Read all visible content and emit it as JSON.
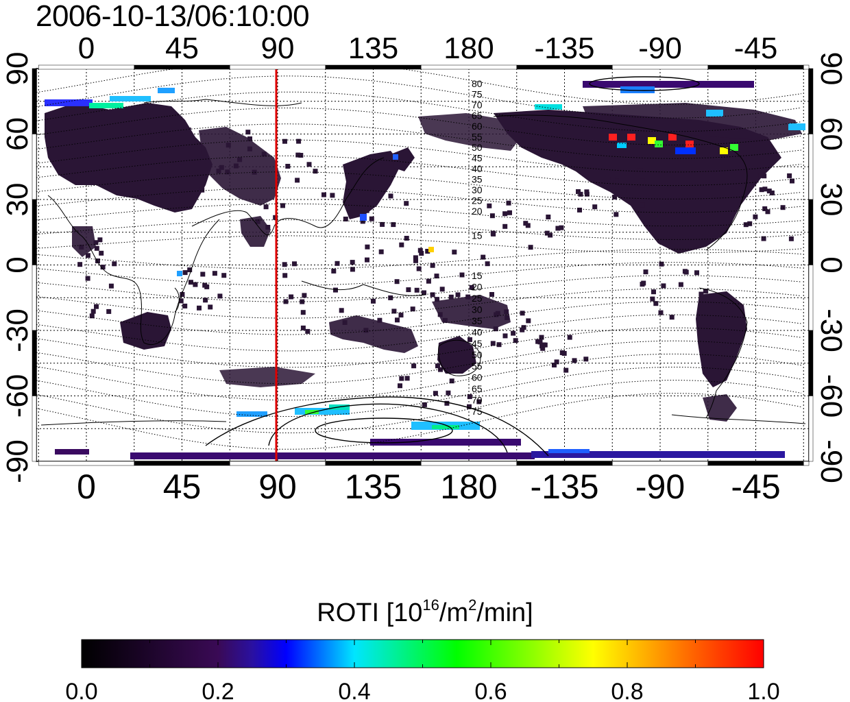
{
  "title": "2006-10-13/06:10:00",
  "map": {
    "lon_ticks_top": [
      "0",
      "45",
      "90",
      "135",
      "180",
      "-135",
      "-90",
      "-45"
    ],
    "lon_ticks_bottom": [
      "0",
      "45",
      "90",
      "135",
      "180",
      "-135",
      "-90",
      "-45"
    ],
    "lat_ticks_left": [
      "90",
      "60",
      "30",
      "0",
      "-30",
      "-60",
      "-90"
    ],
    "lat_ticks_right": [
      "90",
      "60",
      "30",
      "0",
      "-30",
      "-60",
      "-90"
    ],
    "lon_range": [
      -20,
      178
    ],
    "lat_range": [
      -90,
      90
    ],
    "marker_longitude": 90,
    "marker_color": "#e00000",
    "contour_labels_north": [
      "80",
      "75",
      "70",
      "65",
      "60",
      "55",
      "50",
      "45",
      "40",
      "35",
      "30",
      "25",
      "20",
      "15"
    ],
    "contour_labels_south": [
      "15",
      "20",
      "25",
      "30",
      "35",
      "40",
      "45",
      "50",
      "55",
      "60",
      "65",
      "70",
      "75"
    ]
  },
  "colorbar": {
    "title_prefix": "ROTI  [10",
    "title_exp1": "16",
    "title_mid": "/m",
    "title_exp2": "2",
    "title_suffix": "/min]",
    "tick_labels": [
      "0.0",
      "0.2",
      "0.4",
      "0.6",
      "0.8",
      "1.0"
    ],
    "range": [
      0.0,
      1.0
    ],
    "colors": [
      "#000000",
      "#3a0a55",
      "#0000ff",
      "#00e5ff",
      "#00ff00",
      "#ffff00",
      "#ff0000"
    ]
  }
}
